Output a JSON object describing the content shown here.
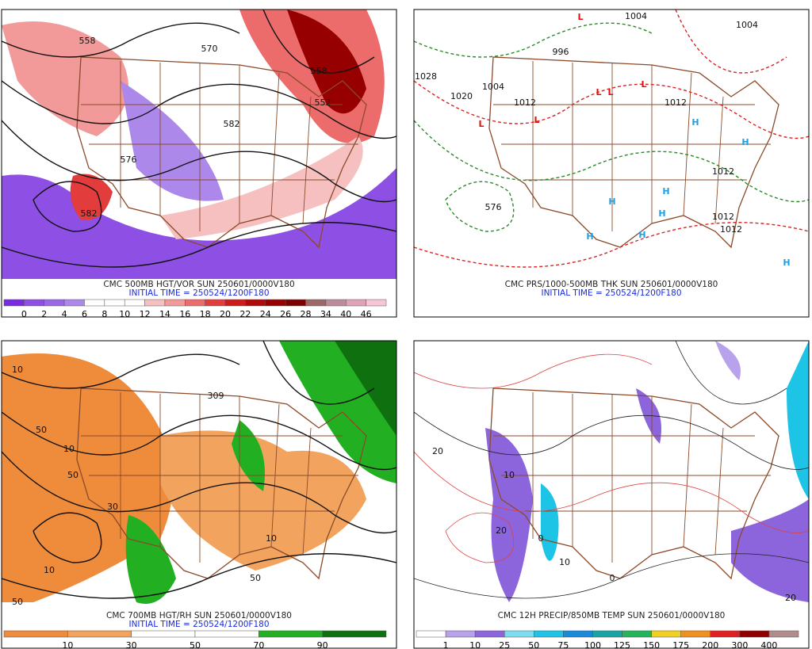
{
  "panels": [
    {
      "title": "CMC 500MB HGT/VOR SUN 250601/0000V180",
      "initial_time": "INITIAL TIME = 250524/1200F180",
      "colorbar": {
        "labels": [
          "0",
          "2",
          "4",
          "6",
          "8",
          "10",
          "12",
          "14",
          "16",
          "18",
          "20",
          "22",
          "24",
          "26",
          "28",
          "34",
          "40",
          "46"
        ],
        "colors": [
          "#7a2be0",
          "#8e4fe4",
          "#9a6ae6",
          "#ac88ea",
          "#ffffff",
          "#ffffff",
          "#ffffff",
          "#f6c0c0",
          "#f29a9a",
          "#ec6c6c",
          "#e23c3c",
          "#cc1c1c",
          "#b00a0a",
          "#960000",
          "#7c0000",
          "#9c6868",
          "#bc8c9c",
          "#e2a2b6",
          "#f6c6d6"
        ]
      },
      "map_labels": [
        "558",
        "570",
        "558",
        "582",
        "582",
        "552",
        "576"
      ]
    },
    {
      "title": "CMC PRS/1000-500MB THK SUN 250601/0000V180",
      "initial_time": "INITIAL TIME = 250524/1200F180",
      "map_labels": [
        "1004",
        "1004",
        "996",
        "1028",
        "1020",
        "1004",
        "1012",
        "1012",
        "1012",
        "1012",
        "1012",
        "576",
        "L",
        "L",
        "L",
        "L",
        "L",
        "L",
        "H",
        "H",
        "H",
        "H",
        "H",
        "H",
        "H",
        "H"
      ]
    },
    {
      "title": "CMC 700MB HGT/RH SUN 250601/0000V180",
      "initial_time": "INITIAL TIME = 250524/1200F180",
      "colorbar": {
        "labels": [
          "10",
          "30",
          "50",
          "70",
          "90"
        ],
        "colors": [
          "#ee8c3c",
          "#f2a45e",
          "#ffffff",
          "#ffffff",
          "#22b022",
          "#0e700e"
        ]
      },
      "map_labels": [
        "10",
        "50",
        "10",
        "50",
        "30",
        "10",
        "50",
        "309",
        "10",
        "50"
      ]
    },
    {
      "title": "CMC 12H PRECIP/850MB TEMP SUN 250601/0000V180",
      "colorbar": {
        "labels": [
          "1",
          "10",
          "25",
          "50",
          "75",
          "100",
          "125",
          "150",
          "175",
          "200",
          "300",
          "400"
        ],
        "colors": [
          "#ffffff",
          "#b8a2ec",
          "#8c64dc",
          "#7edcf0",
          "#1ec4e6",
          "#1a8ad8",
          "#1aa4a4",
          "#24b45c",
          "#f0d020",
          "#f09020",
          "#e02020",
          "#900000",
          "#b08c8c"
        ]
      },
      "map_labels": [
        "20",
        "10",
        "0",
        "20",
        "10",
        "0",
        "20"
      ]
    }
  ]
}
